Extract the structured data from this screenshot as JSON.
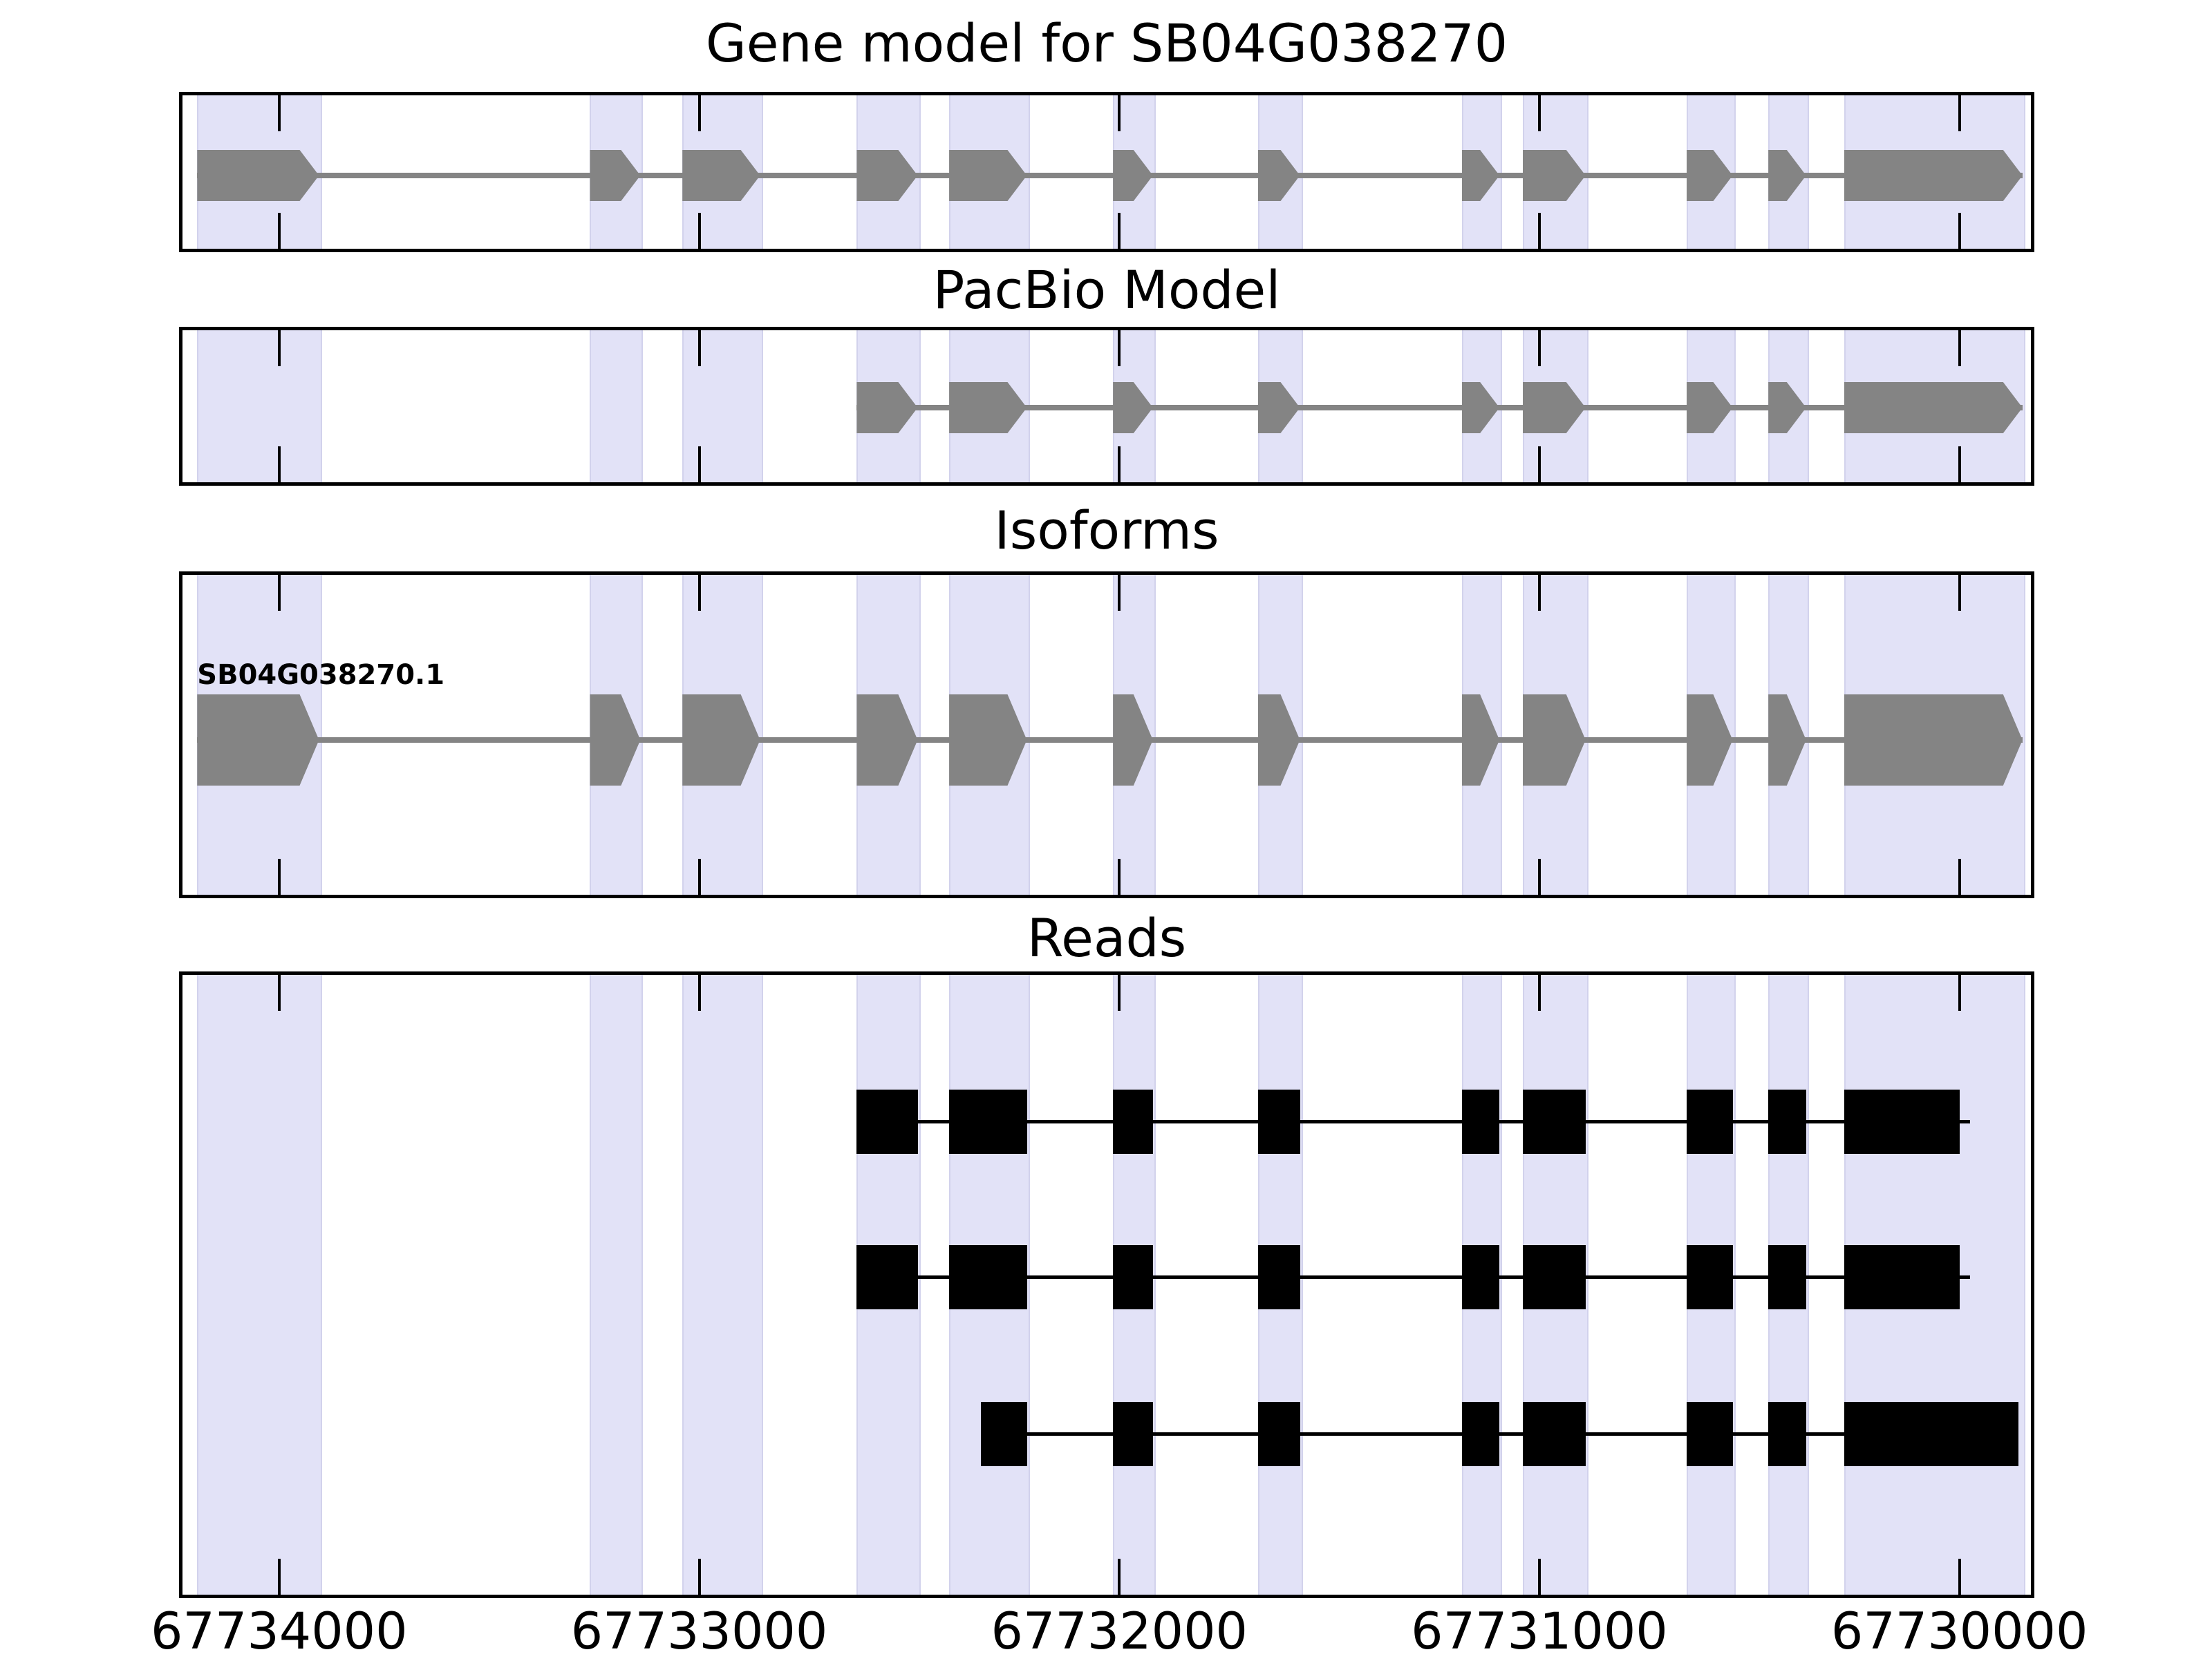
{
  "figure": {
    "title": "Gene model for SB04G038270"
  },
  "chart_data": {
    "type": "gene-model-tracks",
    "x_axis": {
      "ticks": [
        67734000,
        67733000,
        67732000,
        67731000,
        67730000
      ],
      "tick_labels": [
        "67734000",
        "67733000",
        "67732000",
        "67731000",
        "67730000"
      ],
      "range_left": 67734230,
      "range_right": 67729830,
      "reversed": true,
      "grid": false
    },
    "colors": {
      "exon_gray": "#848484",
      "intron_gray": "#848484",
      "read_black": "#000000",
      "band_fill": "#e2e2f7",
      "band_edge": "#d2d2ec",
      "panel_border": "#000000",
      "text": "#000000",
      "background": "#ffffff"
    },
    "arrow_tip_bp": 45,
    "highlight_regions": [
      [
        67734195,
        67733905
      ],
      [
        67733260,
        67733140
      ],
      [
        67733040,
        67732855
      ],
      [
        67732625,
        67732480
      ],
      [
        67732405,
        67732220
      ],
      [
        67732015,
        67731920
      ],
      [
        67731670,
        67731570
      ],
      [
        67731185,
        67731095
      ],
      [
        67731040,
        67730890
      ],
      [
        67730650,
        67730540
      ],
      [
        67730455,
        67730365
      ],
      [
        67730275,
        67729850
      ]
    ],
    "panels": [
      {
        "title": "Gene model for SB04G038270",
        "kind": "gene",
        "features": [
          {
            "label": null,
            "arrows": true,
            "color_key": "exon_gray",
            "exons": [
              [
                67734195,
                67733950
              ],
              [
                67733260,
                67733185
              ],
              [
                67733040,
                67732900
              ],
              [
                67732625,
                67732525
              ],
              [
                67732405,
                67732265
              ],
              [
                67732015,
                67731965
              ],
              [
                67731670,
                67731615
              ],
              [
                67731185,
                67731140
              ],
              [
                67731040,
                67730935
              ],
              [
                67730650,
                67730585
              ],
              [
                67730455,
                67730410
              ],
              [
                67730275,
                67729895
              ]
            ]
          }
        ]
      },
      {
        "title": "PacBio Model",
        "kind": "gene",
        "features": [
          {
            "label": null,
            "arrows": true,
            "color_key": "exon_gray",
            "exons": [
              [
                67732625,
                67732525
              ],
              [
                67732405,
                67732265
              ],
              [
                67732015,
                67731965
              ],
              [
                67731670,
                67731615
              ],
              [
                67731185,
                67731140
              ],
              [
                67731040,
                67730935
              ],
              [
                67730650,
                67730585
              ],
              [
                67730455,
                67730410
              ],
              [
                67730275,
                67729895
              ]
            ]
          }
        ]
      },
      {
        "title": "Isoforms",
        "kind": "gene",
        "features": [
          {
            "label": "SB04G038270.1",
            "arrows": true,
            "color_key": "exon_gray",
            "exons": [
              [
                67734195,
                67733950
              ],
              [
                67733260,
                67733185
              ],
              [
                67733040,
                67732900
              ],
              [
                67732625,
                67732525
              ],
              [
                67732405,
                67732265
              ],
              [
                67732015,
                67731965
              ],
              [
                67731670,
                67731615
              ],
              [
                67731185,
                67731140
              ],
              [
                67731040,
                67730935
              ],
              [
                67730650,
                67730585
              ],
              [
                67730455,
                67730410
              ],
              [
                67730275,
                67729895
              ]
            ]
          }
        ]
      },
      {
        "title": "Reads",
        "kind": "reads",
        "features": [
          {
            "label": null,
            "arrows": false,
            "color_key": "read_black",
            "line_end": 67729975,
            "exons": [
              [
                67732625,
                67732480
              ],
              [
                67732405,
                67732220
              ],
              [
                67732015,
                67731920
              ],
              [
                67731670,
                67731570
              ],
              [
                67731185,
                67731095
              ],
              [
                67731040,
                67730890
              ],
              [
                67730650,
                67730540
              ],
              [
                67730455,
                67730365
              ],
              [
                67730275,
                67730000
              ]
            ]
          },
          {
            "label": null,
            "arrows": false,
            "color_key": "read_black",
            "line_end": 67729975,
            "exons": [
              [
                67732625,
                67732480
              ],
              [
                67732405,
                67732220
              ],
              [
                67732015,
                67731920
              ],
              [
                67731670,
                67731570
              ],
              [
                67731185,
                67731095
              ],
              [
                67731040,
                67730890
              ],
              [
                67730650,
                67730540
              ],
              [
                67730455,
                67730365
              ],
              [
                67730275,
                67730000
              ]
            ]
          },
          {
            "label": null,
            "arrows": false,
            "color_key": "read_black",
            "line_end": 67729860,
            "exons": [
              [
                67732330,
                67732220
              ],
              [
                67732015,
                67731920
              ],
              [
                67731670,
                67731570
              ],
              [
                67731185,
                67731095
              ],
              [
                67731040,
                67730890
              ],
              [
                67730650,
                67730540
              ],
              [
                67730455,
                67730365
              ],
              [
                67730275,
                67729860
              ]
            ]
          }
        ]
      }
    ]
  }
}
